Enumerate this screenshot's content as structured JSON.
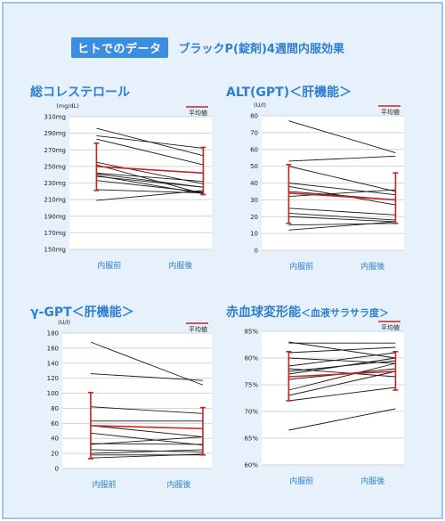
{
  "header": {
    "badge": "ヒトでのデータ",
    "title": "ブラックP(錠剤)4週間内服効果"
  },
  "colors": {
    "accent_blue": "#2f7fd0",
    "badge_blue": "#3b8ede",
    "mean_red": "#cc2222",
    "line_black": "#1a1a1a",
    "frame_bg": "#e6f1fb"
  },
  "chart_data": [
    {
      "type": "line",
      "title": "総コレステロール",
      "title_sub": "",
      "unit": "(mg/dL)",
      "categories": [
        "内服前",
        "内服後"
      ],
      "y_ticks": [
        "310mg",
        "290mg",
        "270mg",
        "250mg",
        "230mg",
        "210mg",
        "190mg",
        "170mg",
        "150mg"
      ],
      "ylim": [
        150,
        310
      ],
      "legend": "平均値",
      "grid": true,
      "series": [
        {
          "values": [
            296,
            263
          ]
        },
        {
          "values": [
            287,
            272
          ]
        },
        {
          "values": [
            283,
            252
          ]
        },
        {
          "values": [
            255,
            229
          ]
        },
        {
          "values": [
            252,
            217
          ]
        },
        {
          "values": [
            242,
            232
          ]
        },
        {
          "values": [
            241,
            225
          ]
        },
        {
          "values": [
            239,
            217
          ]
        },
        {
          "values": [
            238,
            225
          ]
        },
        {
          "values": [
            233,
            219
          ]
        },
        {
          "values": [
            222,
            218
          ]
        },
        {
          "values": [
            209,
            221
          ]
        }
      ],
      "mean": {
        "name": "平均値",
        "values": [
          250,
          242
        ],
        "error": [
          [
            221,
            278
          ],
          [
            216,
            273
          ]
        ]
      }
    },
    {
      "type": "line",
      "title": "ALT(GPT)＜肝機能＞",
      "title_sub": "",
      "unit": "(U/l)",
      "categories": [
        "内服前",
        "内服後"
      ],
      "y_ticks": [
        "80",
        "70",
        "60",
        "50",
        "40",
        "30",
        "20",
        "10",
        "0"
      ],
      "ylim": [
        0,
        80
      ],
      "legend": "平均値",
      "grid": true,
      "series": [
        {
          "values": [
            77,
            58
          ]
        },
        {
          "values": [
            53,
            56
          ]
        },
        {
          "values": [
            50,
            35
          ]
        },
        {
          "values": [
            40,
            33
          ]
        },
        {
          "values": [
            38,
            27
          ]
        },
        {
          "values": [
            35,
            30
          ]
        },
        {
          "values": [
            32,
            36
          ]
        },
        {
          "values": [
            25,
            21
          ]
        },
        {
          "values": [
            22,
            18
          ]
        },
        {
          "values": [
            20,
            17
          ]
        },
        {
          "values": [
            15,
            16
          ]
        },
        {
          "values": [
            12,
            17
          ]
        }
      ],
      "mean": {
        "name": "平均値",
        "values": [
          34,
          30
        ],
        "error": [
          [
            16,
            51
          ],
          [
            16,
            46
          ]
        ]
      }
    },
    {
      "type": "line",
      "title": "γ-GPT＜肝機能＞",
      "title_sub": "",
      "unit": "(U/l)",
      "categories": [
        "内服前",
        "内服後"
      ],
      "y_ticks": [
        "180",
        "160",
        "140",
        "120",
        "100",
        "80",
        "60",
        "40",
        "20",
        "0"
      ],
      "ylim": [
        0,
        180
      ],
      "legend": "平均値",
      "grid": true,
      "series": [
        {
          "values": [
            168,
            111
          ]
        },
        {
          "values": [
            126,
            117
          ]
        },
        {
          "values": [
            82,
            73
          ]
        },
        {
          "values": [
            63,
            63
          ]
        },
        {
          "values": [
            57,
            42
          ]
        },
        {
          "values": [
            47,
            31
          ]
        },
        {
          "values": [
            33,
            32
          ]
        },
        {
          "values": [
            32,
            42
          ]
        },
        {
          "values": [
            25,
            22
          ]
        },
        {
          "values": [
            20,
            25
          ]
        },
        {
          "values": [
            18,
            18
          ]
        },
        {
          "values": [
            14,
            19
          ]
        }
      ],
      "mean": {
        "name": "平均値",
        "values": [
          57,
          53
        ],
        "error": [
          [
            13,
            101
          ],
          [
            18,
            81
          ]
        ]
      }
    },
    {
      "type": "line",
      "title": "赤血球変形能",
      "title_sub": "＜血液サラサラ度＞",
      "unit": "",
      "categories": [
        "内服前",
        "内服後"
      ],
      "y_ticks": [
        "85%",
        "80%",
        "75%",
        "70%",
        "65%",
        "60%"
      ],
      "ylim": [
        60,
        85
      ],
      "legend": "平均値",
      "grid": true,
      "series": [
        {
          "values": [
            83,
            80
          ]
        },
        {
          "values": [
            82.8,
            82.8
          ]
        },
        {
          "values": [
            81,
            82
          ]
        },
        {
          "values": [
            80,
            79
          ]
        },
        {
          "values": [
            78.5,
            81
          ]
        },
        {
          "values": [
            78,
            76.5
          ]
        },
        {
          "values": [
            77.5,
            79.5
          ]
        },
        {
          "values": [
            77,
            80
          ]
        },
        {
          "values": [
            76,
            78
          ]
        },
        {
          "values": [
            74,
            79
          ]
        },
        {
          "values": [
            73,
            77.5
          ]
        },
        {
          "values": [
            72,
            74.5
          ]
        },
        {
          "values": [
            66.5,
            70.5
          ]
        }
      ],
      "mean": {
        "name": "平均値",
        "values": [
          76.5,
          77.5
        ],
        "error": [
          [
            72,
            81.2
          ],
          [
            74,
            81.2
          ]
        ]
      }
    }
  ]
}
